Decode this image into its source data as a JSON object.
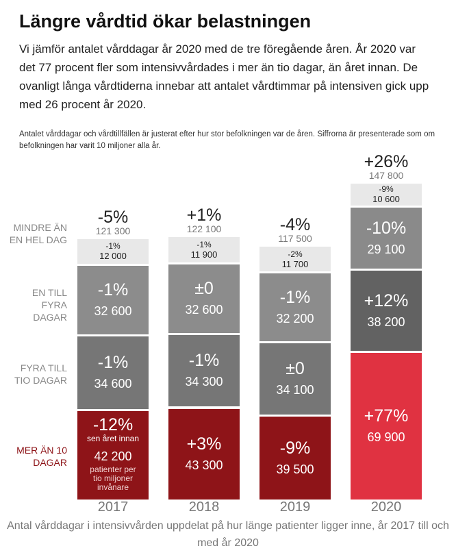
{
  "header": {
    "title": "Längre vårdtid ökar belastningen",
    "intro": "Vi jämför antalet vårddagar år 2020 med de tre föregående åren. År 2020 var det 77 procent fler som intensivvårdades i mer än tio dagar, än året innan. De ovanligt långa vårdtiderna innebar att antalet vårdtimmar på intensiven gick upp med 26 procent år 2020.",
    "note": "Antalet vårddagar och vårdtillfällen är justerat efter hur stor befolkningen var de åren. Siffrorna är presenterade som om befolkningen har varit 10 miljoner alla år."
  },
  "chart_data": {
    "type": "bar",
    "stacked": true,
    "categories": [
      "2017",
      "2018",
      "2019",
      "2020"
    ],
    "series": [
      {
        "name": "MINDRE ÄN EN HEL DAG",
        "values": [
          12000,
          11900,
          11700,
          10600
        ],
        "changes": [
          "-1%",
          "-1%",
          "-2%",
          "-9%"
        ],
        "labels": [
          "12 000",
          "11 900",
          "11 700",
          "10 600"
        ]
      },
      {
        "name": "EN TILL FYRA DAGAR",
        "values": [
          32600,
          32600,
          32200,
          29100
        ],
        "changes": [
          "-1%",
          "±0",
          "-1%",
          "-10%"
        ],
        "labels": [
          "32 600",
          "32 600",
          "32 200",
          "29 100"
        ]
      },
      {
        "name": "FYRA TILL TIO DAGAR",
        "values": [
          34600,
          34300,
          34100,
          38200
        ],
        "changes": [
          "-1%",
          "-1%",
          "±0",
          "+12%"
        ],
        "labels": [
          "34 600",
          "34 300",
          "34 100",
          "38 200"
        ]
      },
      {
        "name": "MER ÄN 10 DAGAR",
        "values": [
          42200,
          43300,
          39500,
          69900
        ],
        "changes": [
          "-12%",
          "+3%",
          "-9%",
          "+77%"
        ],
        "labels": [
          "42 200",
          "43 300",
          "39 500",
          "69 900"
        ]
      }
    ],
    "totals": {
      "values": [
        121300,
        122100,
        117500,
        147800
      ],
      "labels": [
        "121 300",
        "122 100",
        "117 500",
        "147 800"
      ],
      "changes": [
        "-5%",
        "+1%",
        "-4%",
        "+26%"
      ]
    },
    "annotations": {
      "change_note": "sen året innan",
      "value_note": "patienter per tio miljoner invånare"
    },
    "caption": "Antal vårddagar i intensivvården uppdelat på hur länge patienter ligger inne, år 2017 till och med år 2020",
    "colors": {
      "short": "#e8e8e8",
      "one_to_four": "#8c8c8c",
      "four_to_ten": "#767676",
      "over_ten": "#8e1418",
      "highlight_one_to_four": "#8a8a8a",
      "highlight_four_to_ten": "#626262",
      "highlight_over_ten": "#e03241"
    }
  }
}
